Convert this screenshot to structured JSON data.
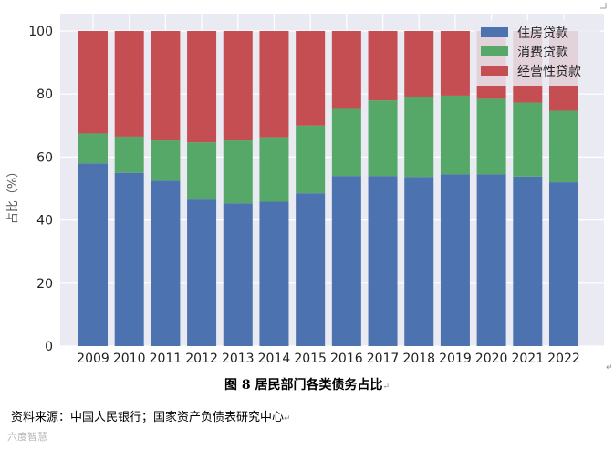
{
  "chart_data": {
    "type": "bar",
    "stacked": true,
    "categories": [
      "2009",
      "2010",
      "2011",
      "2012",
      "2013",
      "2014",
      "2015",
      "2016",
      "2017",
      "2018",
      "2019",
      "2020",
      "2021",
      "2022"
    ],
    "series": [
      {
        "name": "住房贷款",
        "color": "#4c72b0",
        "values": [
          58.0,
          55.0,
          52.5,
          46.5,
          45.3,
          45.8,
          48.5,
          54.0,
          54.0,
          53.7,
          54.5,
          54.5,
          53.8,
          52.0
        ]
      },
      {
        "name": "消费贷款",
        "color": "#55a868",
        "values": [
          9.5,
          11.5,
          12.8,
          18.2,
          20.0,
          20.5,
          21.5,
          21.3,
          24.0,
          25.3,
          25.0,
          24.0,
          23.5,
          22.7
        ]
      },
      {
        "name": "经营性贷款",
        "color": "#c44e52",
        "values": [
          32.5,
          33.5,
          34.7,
          35.3,
          34.7,
          33.7,
          30.0,
          24.7,
          22.0,
          21.0,
          20.5,
          21.5,
          22.7,
          25.3
        ]
      }
    ],
    "ylabel": "占比（%）",
    "ylim": [
      0,
      100
    ],
    "yticks": [
      0,
      20,
      40,
      60,
      80,
      100
    ],
    "grid": true,
    "legend": "top-right",
    "background": "#eaeaf2"
  },
  "caption": {
    "text": "图 8  居民部门各类债务占比",
    "mark": "↵"
  },
  "source": {
    "text": "资料来源：中国人民银行；国家资产负债表研究中心",
    "mark": "↵"
  },
  "watermark": "六度智慧"
}
